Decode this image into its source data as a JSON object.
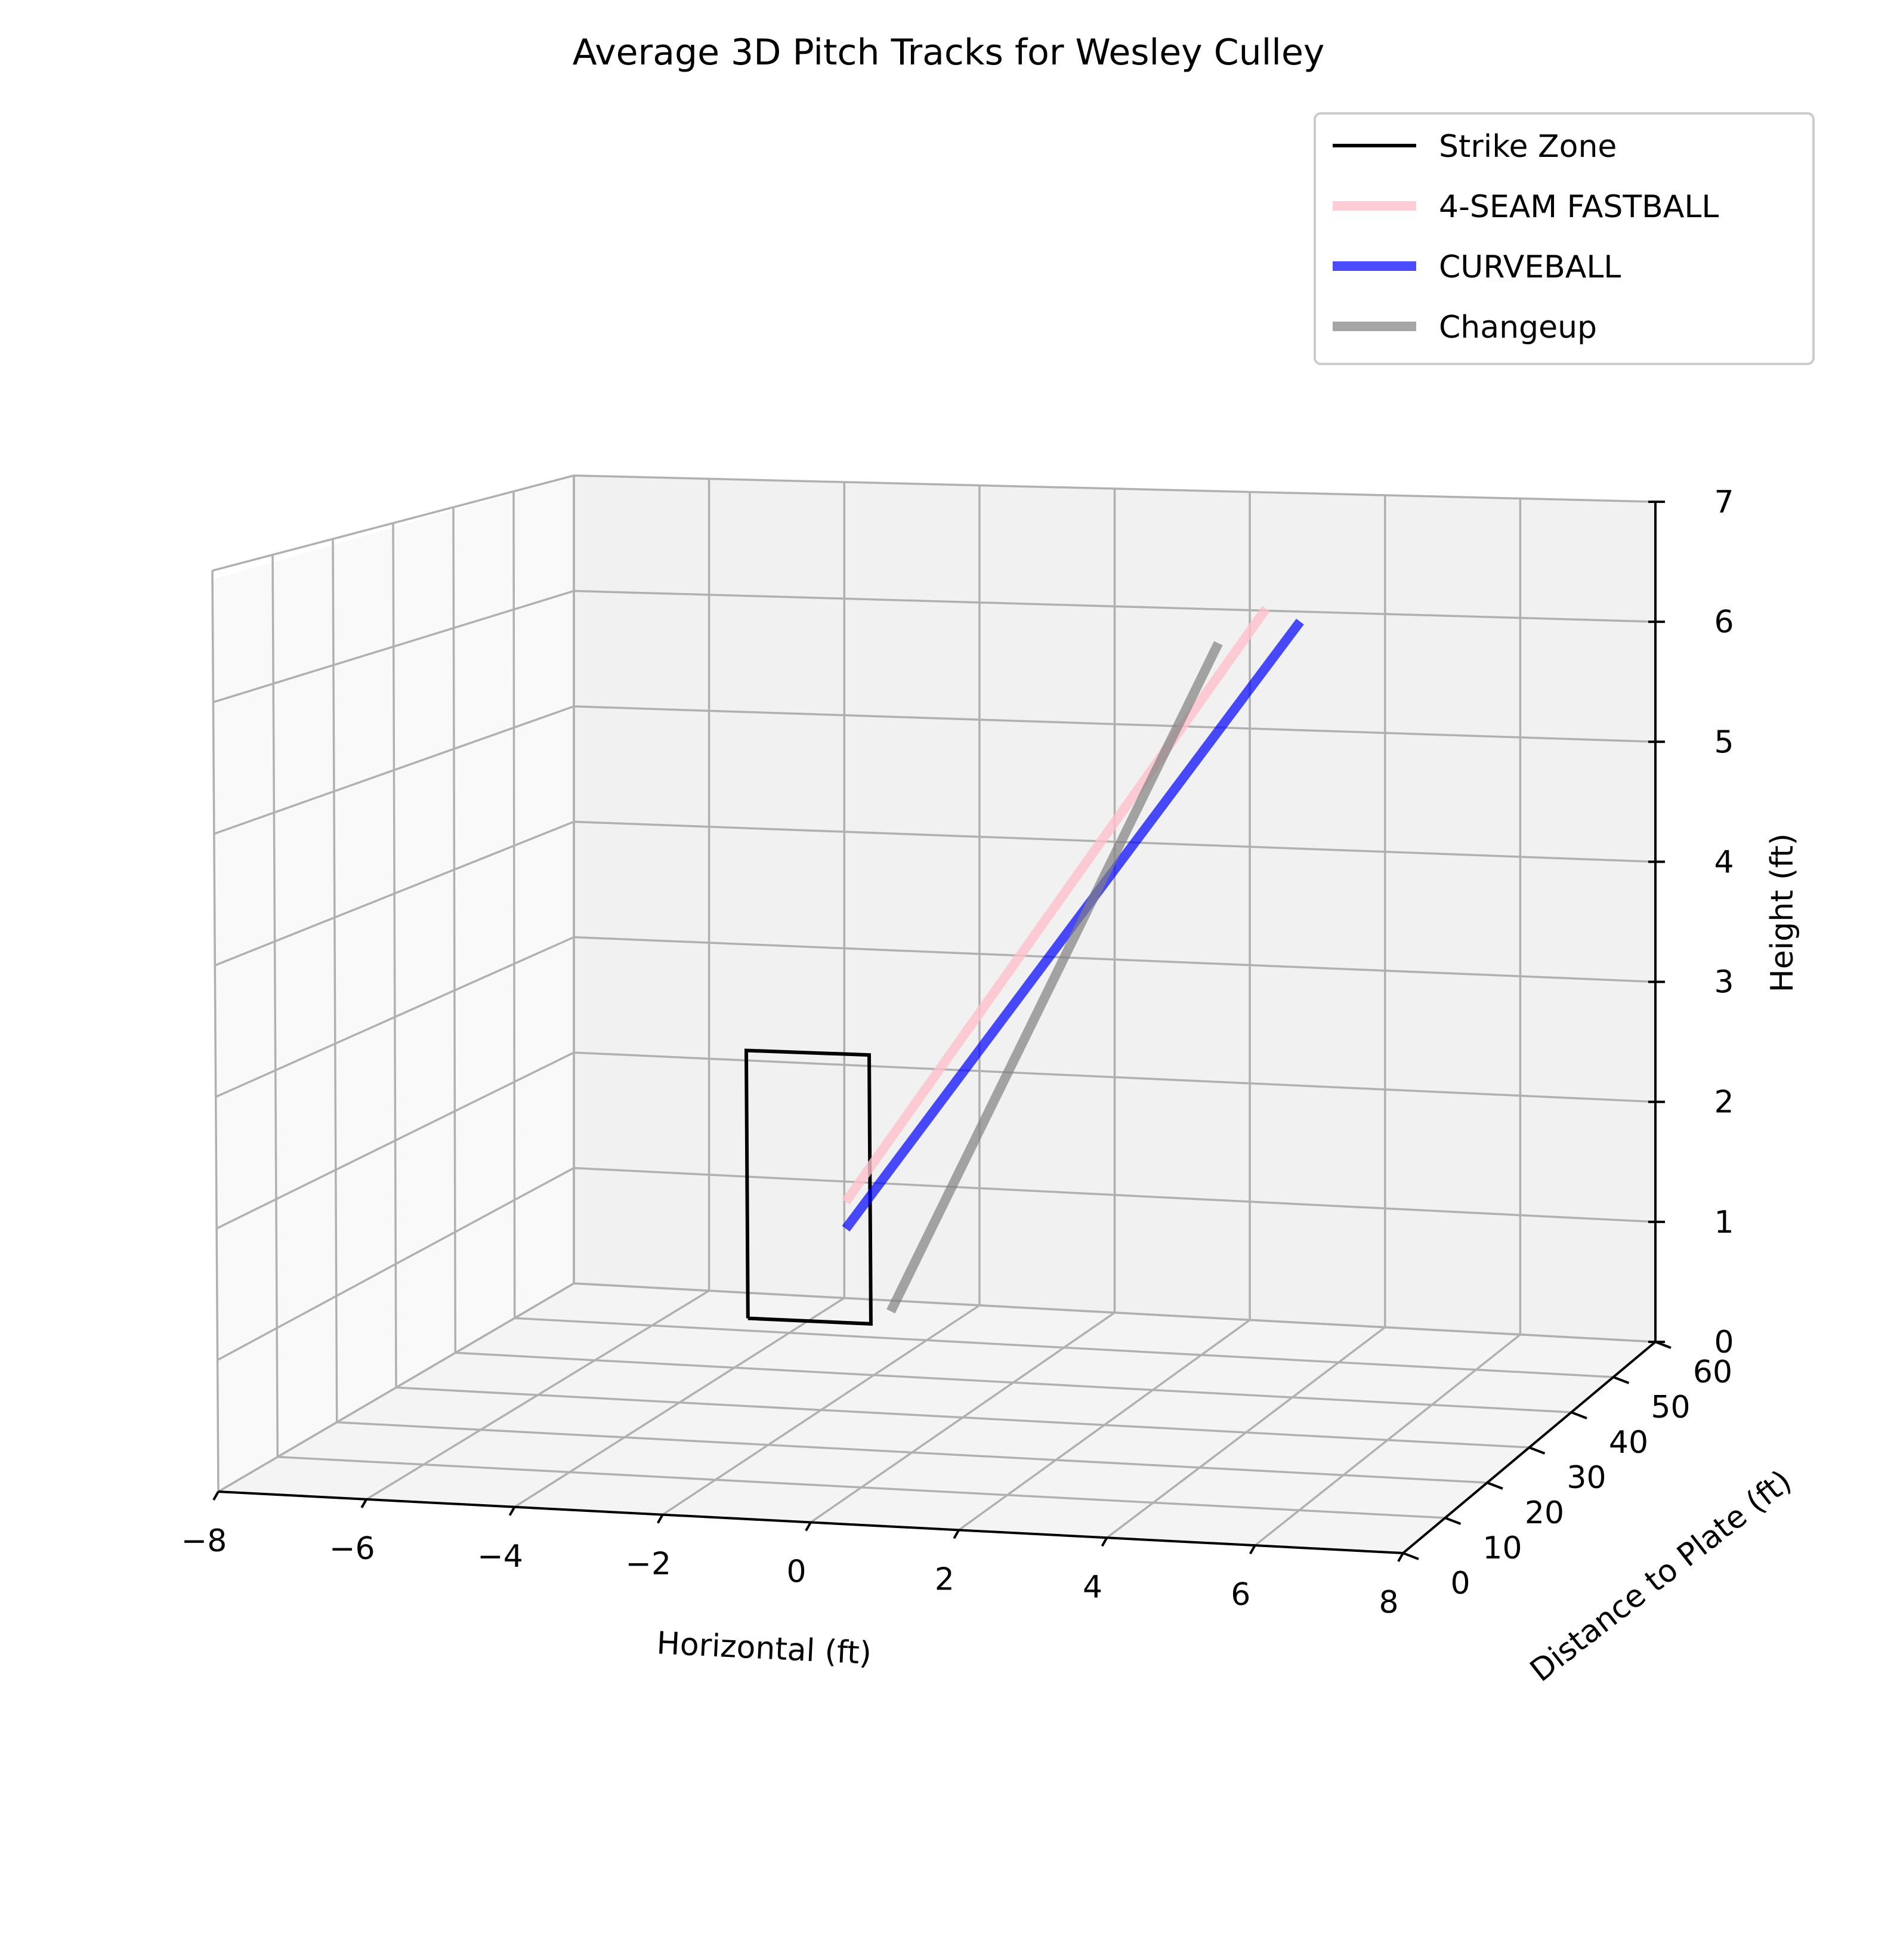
{
  "chart_data": {
    "type": "line",
    "projection": "3d",
    "title": "Average 3D Pitch Tracks for Wesley Culley",
    "xlabel": "Horizontal (ft)",
    "ylabel": "Distance to Plate (ft)",
    "zlabel": "Height (ft)",
    "xlim": [
      -8,
      8
    ],
    "ylim": [
      0,
      60
    ],
    "zlim": [
      0,
      7
    ],
    "xticks": [
      "−8",
      "−6",
      "−4",
      "−2",
      "0",
      "2",
      "4",
      "6",
      "8"
    ],
    "yticks": [
      "0",
      "10",
      "20",
      "30",
      "40",
      "50",
      "60"
    ],
    "zticks": [
      "0",
      "1",
      "2",
      "3",
      "4",
      "5",
      "6",
      "7"
    ],
    "grid": true,
    "legend_position": "top-right",
    "series": [
      {
        "name": "Strike Zone",
        "color": "#000000",
        "points": [
          [
            -0.83,
            0,
            1.5
          ],
          [
            0.83,
            0,
            1.5
          ],
          [
            0.83,
            0,
            3.5
          ],
          [
            -0.83,
            0,
            3.5
          ],
          [
            -0.83,
            0,
            1.5
          ]
        ]
      },
      {
        "name": "4-SEAM FASTBALL",
        "color": "#ffc0cb",
        "points": [
          [
            0.5,
            0,
            2.4
          ],
          [
            2.6,
            55,
            6.1
          ]
        ]
      },
      {
        "name": "CURVEBALL",
        "color": "#0000ff",
        "points": [
          [
            0.5,
            0,
            2.2
          ],
          [
            3.1,
            55,
            6.0
          ]
        ]
      },
      {
        "name": "Changeup",
        "color": "#808080",
        "points": [
          [
            1.1,
            0,
            1.6
          ],
          [
            1.9,
            55,
            5.8
          ]
        ]
      }
    ]
  }
}
